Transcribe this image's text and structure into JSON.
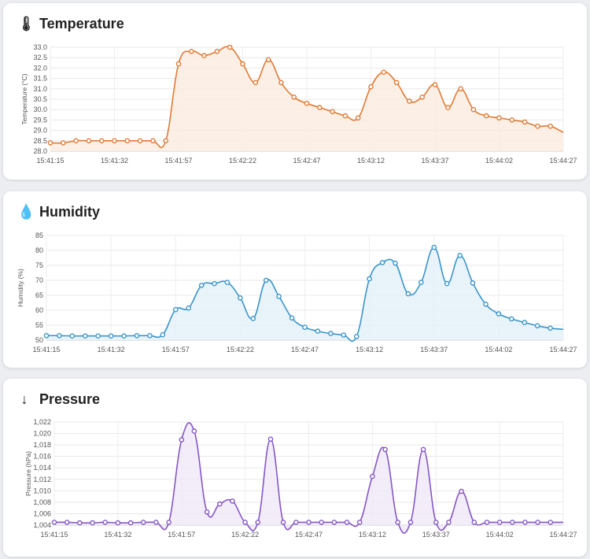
{
  "cards": {
    "temperature": {
      "title": "Temperature",
      "icon": "thermometer-icon",
      "icon_glyph": "🌡"
    },
    "humidity": {
      "title": "Humidity",
      "icon": "water-drop-icon",
      "icon_glyph": "💧"
    },
    "pressure": {
      "title": "Pressure",
      "icon": "down-arrow-icon",
      "icon_glyph": "↓"
    }
  },
  "chart_data": [
    {
      "id": "temperature",
      "type": "line",
      "fill": "area",
      "color": "#e07a35",
      "fill_color": "#fbece0",
      "ylabel": "Temperature (°C)",
      "ylim": [
        28.0,
        33.0
      ],
      "yticks": [
        "33.0",
        "32.5",
        "32.0",
        "31.5",
        "31.0",
        "30.5",
        "30.0",
        "29.5",
        "29.0",
        "28.5",
        "28.0"
      ],
      "xticks": [
        "15:41:15",
        "15:41:32",
        "15:41:57",
        "15:42:22",
        "15:42:47",
        "15:43:12",
        "15:43:37",
        "15:44:02",
        "15:44:27"
      ],
      "grid": true,
      "values": [
        28.4,
        28.4,
        28.5,
        28.5,
        28.5,
        28.5,
        28.5,
        28.5,
        28.5,
        28.5,
        32.2,
        32.8,
        32.6,
        32.8,
        33.0,
        32.2,
        31.3,
        32.4,
        31.3,
        30.6,
        30.3,
        30.1,
        29.9,
        29.7,
        29.6,
        31.1,
        31.8,
        31.3,
        30.4,
        30.6,
        31.2,
        30.1,
        31.0,
        30.0,
        29.7,
        29.6,
        29.5,
        29.4,
        29.2,
        29.2,
        28.9
      ]
    },
    {
      "id": "humidity",
      "type": "line",
      "fill": "area",
      "color": "#3a95c9",
      "fill_color": "#e3f0f9",
      "ylabel": "Humidity (%)",
      "ylim": [
        50,
        85
      ],
      "yticks": [
        "85",
        "80",
        "75",
        "70",
        "65",
        "60",
        "55",
        "50"
      ],
      "xticks": [
        "15:41:15",
        "15:41:32",
        "15:41:57",
        "15:42:22",
        "15:42:47",
        "15:43:12",
        "15:43:37",
        "15:44:02",
        "15:44:27"
      ],
      "grid": true,
      "values": [
        51.5,
        51.5,
        51.4,
        51.4,
        51.4,
        51.4,
        51.4,
        51.5,
        51.5,
        51.8,
        60.2,
        60.7,
        68.3,
        68.9,
        69.3,
        64.1,
        57.2,
        70.0,
        64.6,
        57.4,
        54.3,
        53.0,
        52.2,
        51.7,
        51.2,
        70.5,
        75.9,
        75.7,
        65.5,
        69.3,
        81.0,
        68.9,
        78.3,
        69.1,
        62.0,
        58.8,
        57.1,
        55.9,
        54.8,
        54.0,
        53.6
      ]
    },
    {
      "id": "pressure",
      "type": "line",
      "fill": "area",
      "color": "#8657c4",
      "fill_color": "#efe8f8",
      "ylabel": "Pressure (hPa)",
      "ylim": [
        1004,
        1022
      ],
      "yticks": [
        "1,022",
        "1,020",
        "1,018",
        "1,016",
        "1,014",
        "1,012",
        "1,010",
        "1,008",
        "1,006",
        "1,004"
      ],
      "xticks": [
        "15:41:15",
        "15:41:32",
        "15:41:57",
        "15:42:22",
        "15:42:47",
        "15:43:12",
        "15:43:37",
        "15:44:02",
        "15:44:27"
      ],
      "grid": true,
      "values": [
        1004.5,
        1004.5,
        1004.4,
        1004.4,
        1004.5,
        1004.4,
        1004.4,
        1004.5,
        1004.5,
        1004.5,
        1018.9,
        1020.4,
        1006.3,
        1007.7,
        1008.2,
        1004.5,
        1004.5,
        1019.0,
        1004.5,
        1004.5,
        1004.5,
        1004.5,
        1004.5,
        1004.5,
        1004.5,
        1012.5,
        1017.2,
        1004.5,
        1004.5,
        1017.2,
        1004.5,
        1004.5,
        1009.9,
        1004.5,
        1004.5,
        1004.5,
        1004.5,
        1004.5,
        1004.5,
        1004.5,
        1004.5
      ]
    }
  ]
}
